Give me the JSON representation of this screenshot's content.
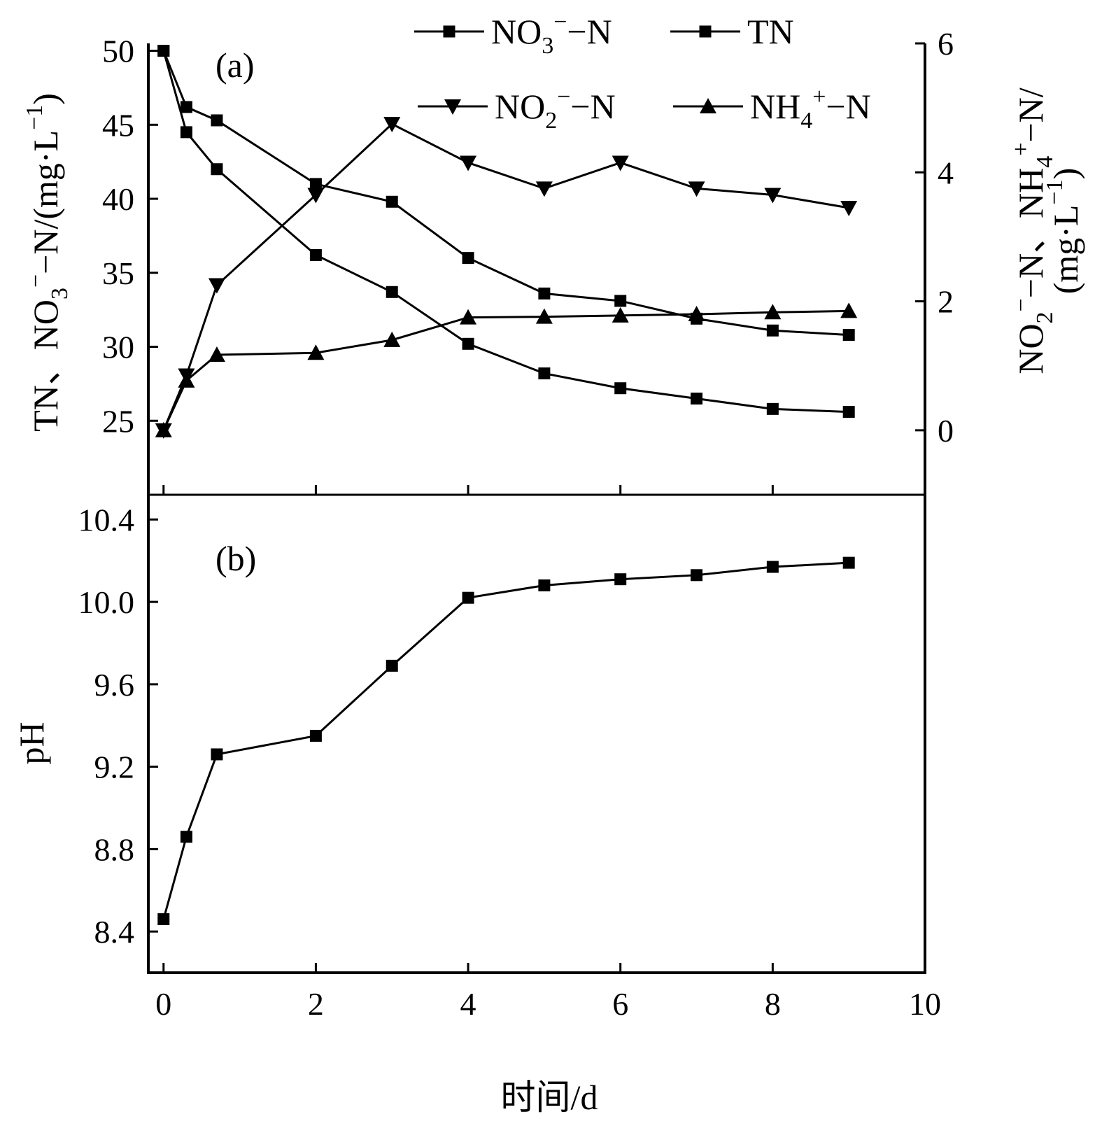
{
  "chart_data": [
    {
      "id": "panel-a",
      "type": "line",
      "panel_label": "(a)",
      "x_ticks": [
        0,
        2,
        4,
        6,
        8,
        10
      ],
      "xlim": [
        -0.2,
        10
      ],
      "left_axis": {
        "label": "TN、NO3−−N/(mg·L−1)",
        "ylim": [
          20,
          50.5
        ],
        "ticks": [
          25,
          30,
          35,
          40,
          45,
          50
        ]
      },
      "right_axis": {
        "label": "NO2−−N、NH4+−N/(mg·L−1)",
        "ylim": [
          -1,
          6
        ],
        "ticks": [
          0,
          2,
          4,
          6
        ]
      },
      "legend_position": "top-right",
      "series": [
        {
          "key": "no3",
          "name": "NO3−−N",
          "legend": {
            "main": "NO",
            "sub": "3",
            "sup": "−",
            "tail": "−N"
          },
          "axis": "left",
          "marker": "square",
          "x": [
            0,
            0.3,
            0.7,
            2,
            3,
            4,
            5,
            6,
            7,
            8,
            9
          ],
          "y": [
            50.0,
            44.5,
            42.0,
            36.2,
            33.7,
            30.2,
            28.2,
            27.2,
            26.5,
            25.8,
            25.6
          ]
        },
        {
          "key": "tn",
          "name": "TN",
          "legend": {
            "main": "TN",
            "sub": "",
            "sup": "",
            "tail": ""
          },
          "axis": "left",
          "marker": "square",
          "x": [
            0,
            0.3,
            0.7,
            2,
            3,
            4,
            5,
            6,
            7,
            8,
            9
          ],
          "y": [
            50.0,
            46.2,
            45.3,
            41.0,
            39.8,
            36.0,
            33.6,
            33.1,
            31.9,
            31.1,
            30.8
          ]
        },
        {
          "key": "no2",
          "name": "NO2−−N",
          "legend": {
            "main": "NO",
            "sub": "2",
            "sup": "−",
            "tail": "−N"
          },
          "axis": "right",
          "marker": "triangle-down",
          "x": [
            0,
            0.3,
            0.7,
            2,
            3,
            4,
            5,
            6,
            7,
            8,
            9
          ],
          "y": [
            0.0,
            0.85,
            2.25,
            3.65,
            4.75,
            4.15,
            3.75,
            4.15,
            3.75,
            3.65,
            3.45
          ]
        },
        {
          "key": "nh4",
          "name": "NH4+−N",
          "legend": {
            "main": "NH",
            "sub": "4",
            "sup": "+",
            "tail": "−N"
          },
          "axis": "right",
          "marker": "triangle-up",
          "x": [
            0,
            0.3,
            0.7,
            2,
            3,
            4,
            5,
            6,
            7,
            8,
            9
          ],
          "y": [
            0.0,
            0.77,
            1.17,
            1.2,
            1.4,
            1.75,
            1.76,
            1.78,
            1.8,
            1.83,
            1.85
          ]
        }
      ]
    },
    {
      "id": "panel-b",
      "type": "line",
      "panel_label": "(b)",
      "x_ticks": [
        0,
        2,
        4,
        6,
        8,
        10
      ],
      "xlim": [
        -0.2,
        10
      ],
      "xlabel": "时间/d",
      "ylabel": "pH",
      "ylim": [
        8.2,
        10.52
      ],
      "y_ticks": [
        "8.4",
        "8.8",
        "9.2",
        "9.6",
        "10.0",
        "10.4"
      ],
      "series": [
        {
          "key": "ph",
          "marker": "square",
          "x": [
            0,
            0.3,
            0.7,
            2,
            3,
            4,
            5,
            6,
            7,
            8,
            9
          ],
          "y": [
            8.46,
            8.86,
            9.26,
            9.35,
            9.69,
            10.02,
            10.08,
            10.11,
            10.13,
            10.17,
            10.19
          ]
        }
      ]
    }
  ]
}
